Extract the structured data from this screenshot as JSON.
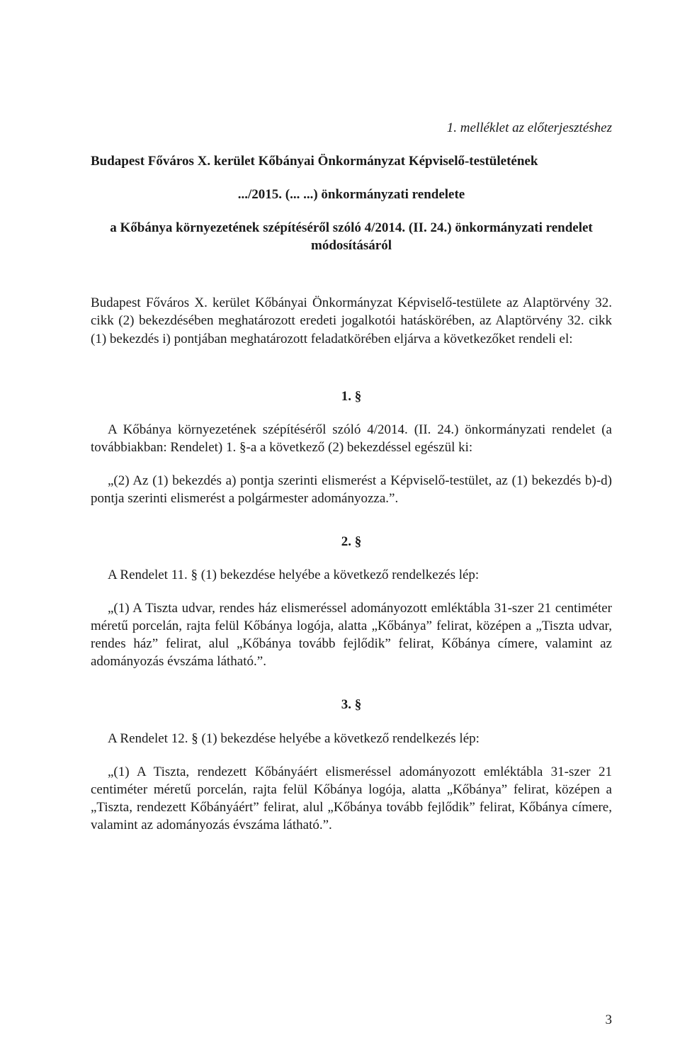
{
  "attachment_note": "1. melléklet az előterjesztéshez",
  "title_line1": "Budapest Főváros X. kerület Kőbányai Önkormányzat Képviselő-testületének",
  "title_line2": ".../2015. (... ...) önkormányzati rendelete",
  "subtitle_line1": "a Kőbánya környezetének szépítéséről szóló 4/2014. (II. 24.) önkormányzati rendelet",
  "subtitle_line2": "módosításáról",
  "preamble": "Budapest Főváros X. kerület Kőbányai Önkormányzat Képviselő-testülete az Alaptörvény 32. cikk (2) bekezdésében meghatározott eredeti jogalkotói hatáskörében, az Alaptörvény 32. cikk (1) bekezdés i) pontjában meghatározott feladatkörében eljárva a következőket rendeli el:",
  "s1_heading": "1. §",
  "s1_p1": "A Kőbánya környezetének szépítéséről szóló 4/2014. (II. 24.) önkormányzati rendelet (a továbbiakban: Rendelet) 1. §-a a következő (2) bekezdéssel egészül ki:",
  "s1_p2": "„(2) Az (1) bekezdés a) pontja szerinti elismerést a Képviselő-testület, az (1) bekezdés b)-d) pontja szerinti elismerést a polgármester adományozza.”.",
  "s2_heading": "2. §",
  "s2_p1": "A Rendelet 11. § (1) bekezdése helyébe a következő rendelkezés lép:",
  "s2_p2": "„(1) A Tiszta udvar, rendes ház elismeréssel adományozott emléktábla 31-szer 21 centiméter méretű porcelán, rajta felül Kőbánya logója, alatta „Kőbánya” felirat, középen a „Tiszta udvar, rendes ház” felirat, alul „Kőbánya tovább fejlődik” felirat, Kőbánya címere, valamint az adományozás évszáma látható.”.",
  "s3_heading": "3. §",
  "s3_p1": "A Rendelet 12. § (1) bekezdése helyébe a következő rendelkezés lép:",
  "s3_p2": "„(1) A Tiszta, rendezett Kőbányáért elismeréssel adományozott emléktábla 31-szer 21 centiméter méretű porcelán, rajta felül Kőbánya logója, alatta „Kőbánya” felirat, középen a „Tiszta, rendezett Kőbányáért” felirat, alul „Kőbánya tovább fejlődik” felirat, Kőbánya címere, valamint az adományozás évszáma látható.”.",
  "page_number": "3"
}
